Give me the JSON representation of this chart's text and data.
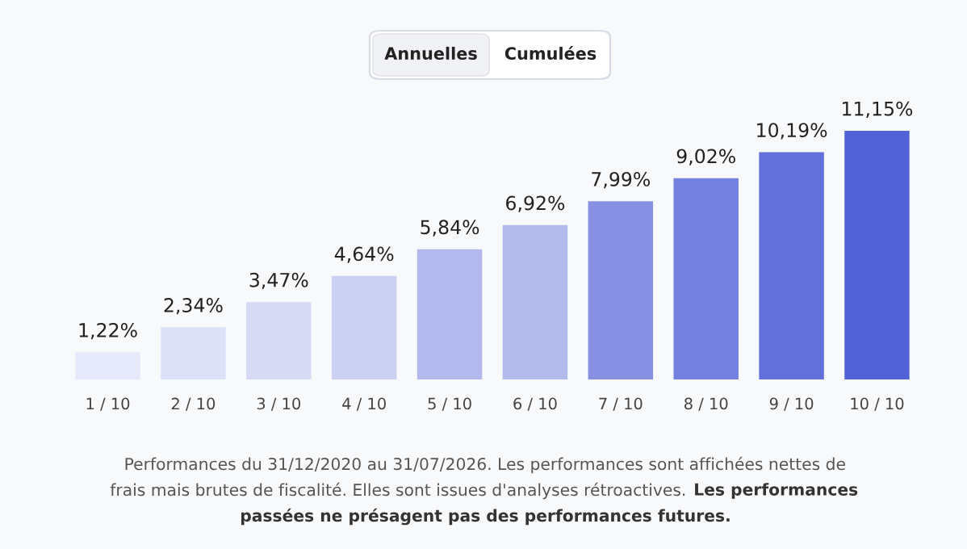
{
  "chart_data": {
    "type": "bar",
    "categories": [
      "1 / 10",
      "2 / 10",
      "3 / 10",
      "4 / 10",
      "5 / 10",
      "6 / 10",
      "7 / 10",
      "8 / 10",
      "9 / 10",
      "10 / 10"
    ],
    "values": [
      1.22,
      2.34,
      3.47,
      4.64,
      5.84,
      6.92,
      7.99,
      9.02,
      10.19,
      11.15
    ],
    "value_labels": [
      "1,22%",
      "2,34%",
      "3,47%",
      "4,64%",
      "5,84%",
      "6,92%",
      "7,99%",
      "9,02%",
      "10,19%",
      "11,15%"
    ],
    "colors": [
      "#e6e9fa",
      "#dde1f7",
      "#d6daf5",
      "#ccd1f2",
      "#b3b9ec",
      "#b3baec",
      "#8890e3",
      "#7480e0",
      "#6370dc",
      "#5361d6"
    ],
    "grid": false,
    "legend": false,
    "annotations": [
      "Annuelles",
      "Cumulées",
      "Performances du 31/12/2020 au 31/07/2026. Les performances sont affichées nettes de frais mais brutes de fiscalité. Elles sont issues d'analyses rétroactives.",
      "Les performances passées ne présagent pas des performances futures."
    ]
  }
}
